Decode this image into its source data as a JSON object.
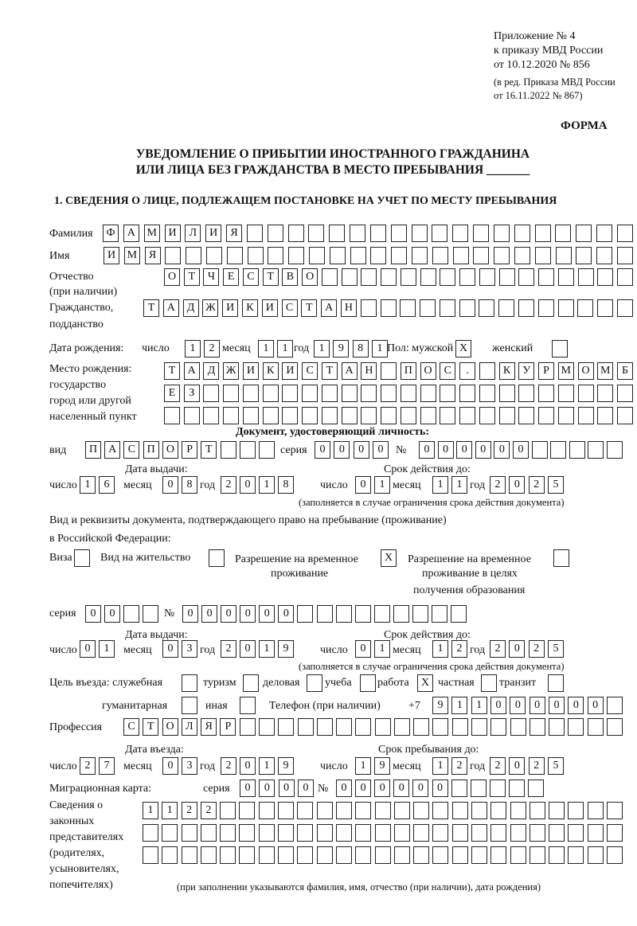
{
  "header": {
    "l1": "Приложение № 4",
    "l2": "к приказу МВД России",
    "l3": "от 10.12.2020 № 856",
    "l4": "(в ред. Приказа МВД России",
    "l5": "от 16.11.2022 № 867)",
    "forma": "ФОРМА",
    "title1": "УВЕДОМЛЕНИЕ О ПРИБЫТИИ ИНОСТРАННОГО ГРАЖДАНИНА",
    "title2": "ИЛИ ЛИЦА БЕЗ ГРАЖДАНСТВА В МЕСТО ПРЕБЫВАНИЯ _______",
    "section1": "1. СВЕДЕНИЯ О ЛИЦЕ, ПОДЛЕЖАЩЕМ ПОСТАНОВКЕ НА УЧЕТ ПО МЕСТУ ПРЕБЫВАНИЯ"
  },
  "labels": {
    "surname": "Фамилия",
    "name": "Имя",
    "patronymic": "Отчество",
    "patronymic2": "(при наличии)",
    "citizenship": "Гражданство,",
    "citizenship2": "подданство",
    "birth_date": "Дата рождения:",
    "day": "число",
    "month": "месяц",
    "year": "год",
    "sex": "Пол: мужской",
    "female": "женский",
    "birthplace1": "Место рождения:",
    "birthplace2": "государство",
    "birthplace3": "город или другой",
    "birthplace4": "населенный пункт",
    "id_doc": "Документ, удостоверяющий личность:",
    "kind": "вид",
    "series": "серия",
    "number": "№",
    "issue_date": "Дата выдачи:",
    "valid_until": "Срок действия до:",
    "valid_note": "(заполняется в случае ограничения срока действия документа)",
    "right_doc1": "Вид и реквизиты документа, подтверждающего право на пребывание (проживание)",
    "right_doc2": "в Российской Федерации:",
    "visa": "Виза",
    "residence": "Вид на жительство",
    "temp_res1": "Разрешение на временное",
    "temp_res2": "проживание",
    "temp_edu1": "Разрешение на временное",
    "temp_edu2": "проживание в целях",
    "temp_edu3": "получения образования",
    "purpose": "Цель въезда: служебная",
    "tourism": "туризм",
    "business": "деловая",
    "study": "учеба",
    "work": "работа",
    "private": "частная",
    "transit": "транзит",
    "humanitarian": "гуманитарная",
    "other": "иная",
    "phone": "Телефон (при наличии)",
    "phone_prefix": "+7",
    "profession": "Профессия",
    "entry_date": "Дата въезда:",
    "stay_until": "Срок пребывания до:",
    "migration_card": "Миграционная карта:",
    "reps1": "Сведения о",
    "reps2": "законных",
    "reps3": "представителях",
    "reps4": "(родителях,",
    "reps5": "усыновителях,",
    "reps6": "попечителях)",
    "reps_note": "(при заполнении указываются фамилия, имя, отчество (при наличии), дата рождения)"
  },
  "fields": {
    "surname": "ФАМИЛИЯ",
    "name": "ИМЯ",
    "patronymic": "ОТЧЕСТВО",
    "citizenship": "ТАДЖИКИСТАН",
    "birth_day": "12",
    "birth_month": "11",
    "birth_year": "1981",
    "sex_male": "X",
    "sex_female": "",
    "birthplace_1": "ТАДЖИКИСТАН ПОС. КУРМОМБ",
    "birthplace_2": "ЕЗ",
    "birthplace_3": "",
    "id_kind": "ПАСПОРТ",
    "id_series": "0000",
    "id_number": "000000",
    "id_issue_day": "16",
    "id_issue_month": "08",
    "id_issue_year": "2018",
    "id_valid_day": "01",
    "id_valid_month": "11",
    "id_valid_year": "2025",
    "visa": "",
    "residence_permit": "",
    "temp_residence": "X",
    "temp_residence_edu": "",
    "rd_series": "00",
    "rd_number": "000000",
    "rd_issue_day": "01",
    "rd_issue_month": "03",
    "rd_issue_year": "2019",
    "rd_valid_day": "01",
    "rd_valid_month": "12",
    "rd_valid_year": "2025",
    "p_official": "",
    "p_tourism": "",
    "p_business": "",
    "p_study": "",
    "p_work": "X",
    "p_private": "",
    "p_transit": "",
    "p_humanitarian": "",
    "p_other": "",
    "phone": "911000000",
    "profession": "СТОЛЯР",
    "entry_day": "27",
    "entry_month": "03",
    "entry_year": "2019",
    "stay_day": "19",
    "stay_month": "12",
    "stay_year": "2025",
    "mc_series": "0000",
    "mc_number": "000000",
    "reps_1": "1122",
    "reps_2": "",
    "reps_3": ""
  }
}
